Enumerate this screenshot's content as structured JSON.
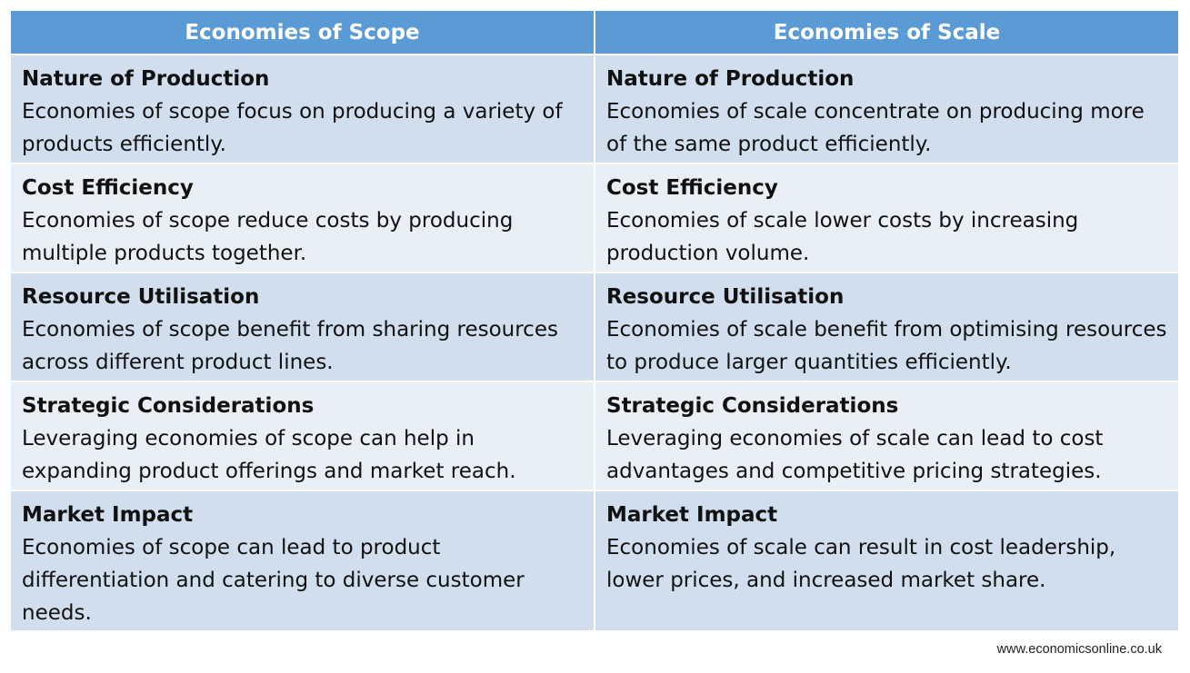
{
  "headers": [
    "Economies of Scope",
    "Economies of Scale"
  ],
  "rows": [
    {
      "scope_title": "Nature of Production",
      "scope_text": "Economies of scope focus on producing a variety of products efficiently.",
      "scale_title": "Nature of Production",
      "scale_text": "Economies of scale concentrate on producing more of the same product efficiently."
    },
    {
      "scope_title": "Cost Efficiency",
      "scope_text": "Economies of scope reduce costs by producing multiple products together.",
      "scale_title": "Cost Efficiency",
      "scale_text": "Economies of scale lower costs by increasing production volume."
    },
    {
      "scope_title": "Resource Utilisation",
      "scope_text": "Economies of scope benefit from sharing resources across different product lines.",
      "scale_title": "Resource Utilisation",
      "scale_text": "Economies of scale benefit from optimising resources to produce larger quantities efficiently."
    },
    {
      "scope_title": "Strategic Considerations",
      "scope_text": "Leveraging economies of scope can help in expanding product offerings and market reach.",
      "scale_title": "Strategic Considerations",
      "scale_text": "Leveraging economies of scale can lead to cost advantages and competitive pricing strategies."
    },
    {
      "scope_title": "Market Impact",
      "scope_text": "Economies of scope can lead to product differentiation and catering to diverse customer needs.",
      "scale_title": "Market Impact",
      "scale_text": "Economies of scale can result in cost leadership, lower prices, and increased market share."
    }
  ],
  "footer": "www.economicsonline.co.uk",
  "colors": {
    "header_bg": "#5b9bd5",
    "row_dark": "#d0deee",
    "row_light": "#e9eff7"
  }
}
